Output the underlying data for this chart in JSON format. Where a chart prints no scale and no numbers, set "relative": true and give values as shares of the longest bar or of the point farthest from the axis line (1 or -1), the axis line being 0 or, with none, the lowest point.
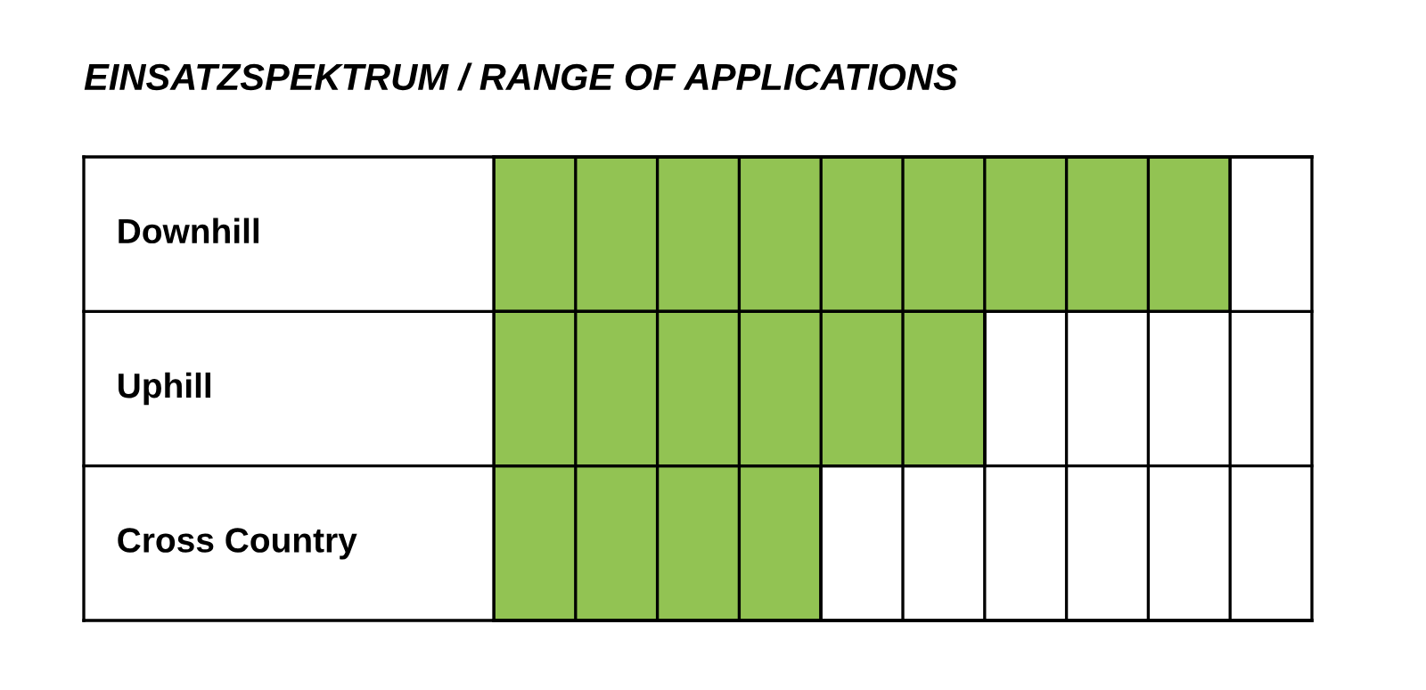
{
  "chart_data": {
    "type": "bar",
    "orientation": "horizontal",
    "title": "EINSATZSPEKTRUM / RANGE OF APPLICATIONS",
    "categories": [
      "Downhill",
      "Uphill",
      "Cross Country"
    ],
    "values": [
      1,
      0.667,
      0.444
    ],
    "color": "#92c353",
    "relative": true
  }
}
